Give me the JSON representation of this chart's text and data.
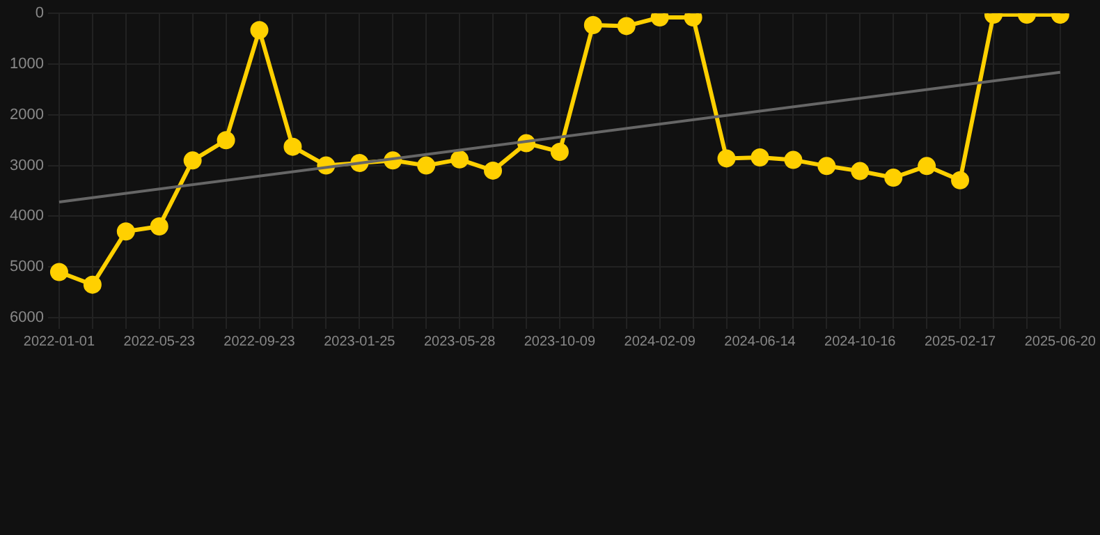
{
  "chart_data": {
    "type": "line",
    "categories": [
      "2022-01-01",
      null,
      null,
      "2022-05-23",
      null,
      null,
      "2022-09-23",
      null,
      null,
      "2023-01-25",
      null,
      null,
      "2023-05-28",
      null,
      null,
      "2023-10-09",
      null,
      null,
      "2024-02-09",
      null,
      null,
      "2024-06-14",
      null,
      null,
      "2024-10-16",
      null,
      null,
      "2025-02-17",
      null,
      null,
      "2025-06-20"
    ],
    "series": [
      {
        "color": "#ffd000",
        "marker": "circle",
        "values": [
          5100,
          5350,
          4300,
          4200,
          2900,
          2500,
          330,
          2630,
          3000,
          2950,
          2900,
          3000,
          2880,
          3100,
          2560,
          2730,
          230,
          250,
          80,
          80,
          2860,
          2840,
          2890,
          3010,
          3110,
          3240,
          3010,
          3290,
          25,
          25,
          25
        ]
      },
      {
        "type": "line",
        "color": "#666666",
        "marker": "none",
        "values": [
          3720,
          null,
          null,
          null,
          null,
          null,
          null,
          null,
          null,
          null,
          null,
          null,
          null,
          null,
          null,
          null,
          null,
          null,
          null,
          null,
          null,
          null,
          null,
          null,
          null,
          null,
          null,
          null,
          null,
          null,
          1160
        ]
      }
    ],
    "ylim": [
      6000,
      0
    ],
    "yticks": [
      0,
      1000,
      2000,
      3000,
      4000,
      5000,
      6000
    ],
    "grid": true,
    "legend": false
  }
}
